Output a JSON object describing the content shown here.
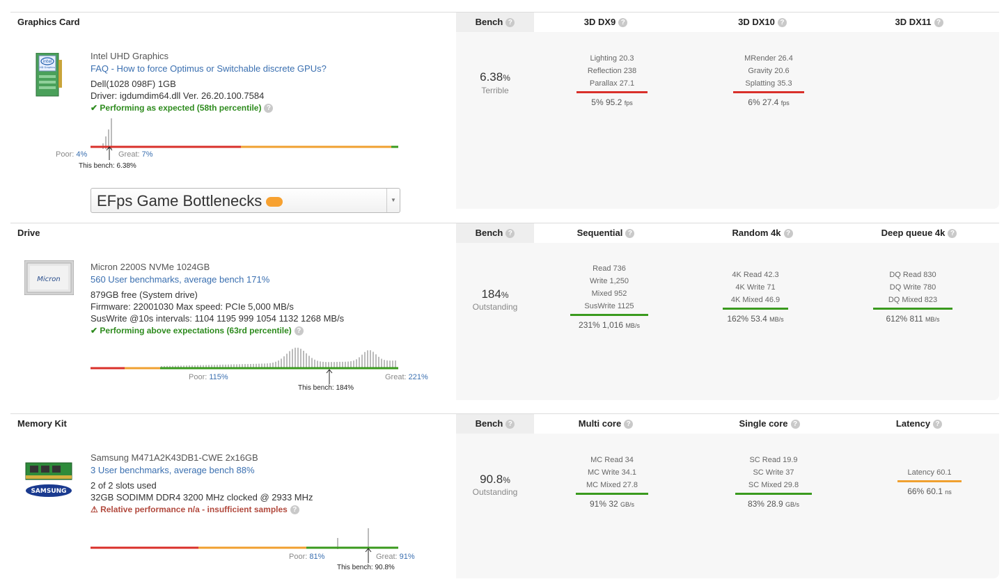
{
  "sections": {
    "gpu": {
      "title": "Graphics Card",
      "bench_header": "Bench",
      "cols": [
        "3D DX9",
        "3D DX10",
        "3D DX11"
      ],
      "name": "Intel UHD Graphics",
      "link": "FAQ - How to force Optimus or Switchable discrete GPUs?",
      "info1": "Dell(1028 098F) 1GB",
      "info2": "Driver: igdumdim64.dll Ver. 26.20.100.7584",
      "perf": "✔ Performing as expected (58th percentile)",
      "bench_value": "6.38",
      "bench_label": "Terrible",
      "poor_label": "Poor:",
      "poor_val": "4%",
      "great_label": "Great:",
      "great_val": "7%",
      "this_bench": "This bench: 6.38%",
      "dropdown": "EFps Game Bottlenecks",
      "m1": [
        "Lighting 20.3",
        "Reflection 238",
        "Parallax 27.1"
      ],
      "m1_sum": "5% 95.2",
      "m1_unit": "fps",
      "m2": [
        "MRender 26.4",
        "Gravity 20.6",
        "Splatting 35.3"
      ],
      "m2_sum": "6% 27.4",
      "m2_unit": "fps"
    },
    "drive": {
      "title": "Drive",
      "bench_header": "Bench",
      "cols": [
        "Sequential",
        "Random 4k",
        "Deep queue 4k"
      ],
      "name": "Micron 2200S NVMe 1024GB",
      "link": "560 User benchmarks, average bench 171%",
      "info1": "879GB free (System drive)",
      "info2": "Firmware: 22001030 Max speed: PCIe 5,000 MB/s",
      "info3": "SusWrite @10s intervals: 1104 1195 999 1054 1132 1268 MB/s",
      "perf": "✔ Performing above expectations (63rd percentile)",
      "bench_value": "184",
      "bench_label": "Outstanding",
      "poor_label": "Poor:",
      "poor_val": "115%",
      "great_label": "Great:",
      "great_val": "221%",
      "this_bench": "This bench: 184%",
      "m1": [
        "Read 736",
        "Write 1,250",
        "Mixed 952",
        "SusWrite 1125"
      ],
      "m1_sum": "231% 1,016",
      "m1_unit": "MB/s",
      "m2": [
        "4K Read 42.3",
        "4K Write 71",
        "4K Mixed 46.9"
      ],
      "m2_sum": "162% 53.4",
      "m2_unit": "MB/s",
      "m3": [
        "DQ Read 830",
        "DQ Write 780",
        "DQ Mixed 823"
      ],
      "m3_sum": "612% 811",
      "m3_unit": "MB/s"
    },
    "ram": {
      "title": "Memory Kit",
      "bench_header": "Bench",
      "cols": [
        "Multi core",
        "Single core",
        "Latency"
      ],
      "name": "Samsung M471A2K43DB1-CWE 2x16GB",
      "link": "3 User benchmarks, average bench 88%",
      "info1": "2 of 2 slots used",
      "info2": "32GB SODIMM DDR4 3200 MHz clocked @ 2933 MHz",
      "perf": "⚠ Relative performance n/a - insufficient samples",
      "bench_value": "90.8",
      "bench_label": "Outstanding",
      "poor_label": "Poor:",
      "poor_val": "81%",
      "great_label": "Great:",
      "great_val": "91%",
      "this_bench": "This bench: 90.8%",
      "m1": [
        "MC Read 34",
        "MC Write 34.1",
        "MC Mixed 27.8"
      ],
      "m1_sum": "91% 32",
      "m1_unit": "GB/s",
      "m2": [
        "SC Read 19.9",
        "SC Write 37",
        "SC Mixed 29.8"
      ],
      "m2_sum": "83% 28.9",
      "m2_unit": "GB/s",
      "m3": [
        "Latency 60.1"
      ],
      "m3_sum": "66% 60.1",
      "m3_unit": "ns"
    }
  },
  "logos": {
    "intel": "intel",
    "intel_sub": "HD Graphics",
    "micron": "Micron",
    "samsung": "SAMSUNG"
  },
  "percent_sign": "%",
  "help_glyph": "?",
  "colors": {
    "red": "#d9302a",
    "orange": "#f0a030",
    "green": "#3a9a1e",
    "link": "#3a6fb0"
  }
}
